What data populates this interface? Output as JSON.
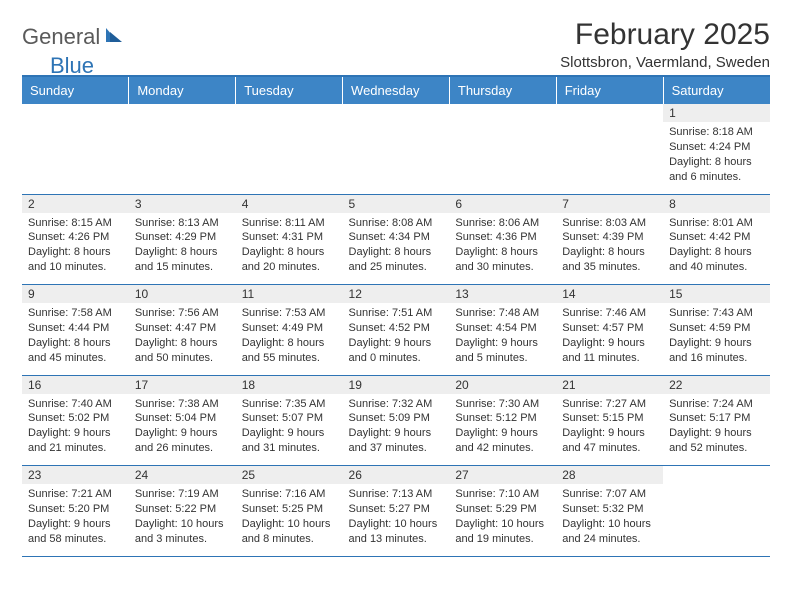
{
  "logo": {
    "text1": "General",
    "text2": "Blue"
  },
  "title": "February 2025",
  "location": "Slottsbron, Vaermland, Sweden",
  "colors": {
    "header_bar": "#3d85c6",
    "divider": "#2e74b5",
    "daynum_bg": "#eeeeee",
    "text": "#333333",
    "logo_gray": "#5a5a5a",
    "logo_blue": "#2e74b5"
  },
  "weekdays": [
    "Sunday",
    "Monday",
    "Tuesday",
    "Wednesday",
    "Thursday",
    "Friday",
    "Saturday"
  ],
  "weeks": [
    [
      null,
      null,
      null,
      null,
      null,
      null,
      {
        "n": "1",
        "sr": "8:18 AM",
        "ss": "4:24 PM",
        "dl": "8 hours and 6 minutes."
      }
    ],
    [
      {
        "n": "2",
        "sr": "8:15 AM",
        "ss": "4:26 PM",
        "dl": "8 hours and 10 minutes."
      },
      {
        "n": "3",
        "sr": "8:13 AM",
        "ss": "4:29 PM",
        "dl": "8 hours and 15 minutes."
      },
      {
        "n": "4",
        "sr": "8:11 AM",
        "ss": "4:31 PM",
        "dl": "8 hours and 20 minutes."
      },
      {
        "n": "5",
        "sr": "8:08 AM",
        "ss": "4:34 PM",
        "dl": "8 hours and 25 minutes."
      },
      {
        "n": "6",
        "sr": "8:06 AM",
        "ss": "4:36 PM",
        "dl": "8 hours and 30 minutes."
      },
      {
        "n": "7",
        "sr": "8:03 AM",
        "ss": "4:39 PM",
        "dl": "8 hours and 35 minutes."
      },
      {
        "n": "8",
        "sr": "8:01 AM",
        "ss": "4:42 PM",
        "dl": "8 hours and 40 minutes."
      }
    ],
    [
      {
        "n": "9",
        "sr": "7:58 AM",
        "ss": "4:44 PM",
        "dl": "8 hours and 45 minutes."
      },
      {
        "n": "10",
        "sr": "7:56 AM",
        "ss": "4:47 PM",
        "dl": "8 hours and 50 minutes."
      },
      {
        "n": "11",
        "sr": "7:53 AM",
        "ss": "4:49 PM",
        "dl": "8 hours and 55 minutes."
      },
      {
        "n": "12",
        "sr": "7:51 AM",
        "ss": "4:52 PM",
        "dl": "9 hours and 0 minutes."
      },
      {
        "n": "13",
        "sr": "7:48 AM",
        "ss": "4:54 PM",
        "dl": "9 hours and 5 minutes."
      },
      {
        "n": "14",
        "sr": "7:46 AM",
        "ss": "4:57 PM",
        "dl": "9 hours and 11 minutes."
      },
      {
        "n": "15",
        "sr": "7:43 AM",
        "ss": "4:59 PM",
        "dl": "9 hours and 16 minutes."
      }
    ],
    [
      {
        "n": "16",
        "sr": "7:40 AM",
        "ss": "5:02 PM",
        "dl": "9 hours and 21 minutes."
      },
      {
        "n": "17",
        "sr": "7:38 AM",
        "ss": "5:04 PM",
        "dl": "9 hours and 26 minutes."
      },
      {
        "n": "18",
        "sr": "7:35 AM",
        "ss": "5:07 PM",
        "dl": "9 hours and 31 minutes."
      },
      {
        "n": "19",
        "sr": "7:32 AM",
        "ss": "5:09 PM",
        "dl": "9 hours and 37 minutes."
      },
      {
        "n": "20",
        "sr": "7:30 AM",
        "ss": "5:12 PM",
        "dl": "9 hours and 42 minutes."
      },
      {
        "n": "21",
        "sr": "7:27 AM",
        "ss": "5:15 PM",
        "dl": "9 hours and 47 minutes."
      },
      {
        "n": "22",
        "sr": "7:24 AM",
        "ss": "5:17 PM",
        "dl": "9 hours and 52 minutes."
      }
    ],
    [
      {
        "n": "23",
        "sr": "7:21 AM",
        "ss": "5:20 PM",
        "dl": "9 hours and 58 minutes."
      },
      {
        "n": "24",
        "sr": "7:19 AM",
        "ss": "5:22 PM",
        "dl": "10 hours and 3 minutes."
      },
      {
        "n": "25",
        "sr": "7:16 AM",
        "ss": "5:25 PM",
        "dl": "10 hours and 8 minutes."
      },
      {
        "n": "26",
        "sr": "7:13 AM",
        "ss": "5:27 PM",
        "dl": "10 hours and 13 minutes."
      },
      {
        "n": "27",
        "sr": "7:10 AM",
        "ss": "5:29 PM",
        "dl": "10 hours and 19 minutes."
      },
      {
        "n": "28",
        "sr": "7:07 AM",
        "ss": "5:32 PM",
        "dl": "10 hours and 24 minutes."
      },
      null
    ]
  ],
  "labels": {
    "sunrise": "Sunrise:",
    "sunset": "Sunset:",
    "daylight": "Daylight:"
  }
}
